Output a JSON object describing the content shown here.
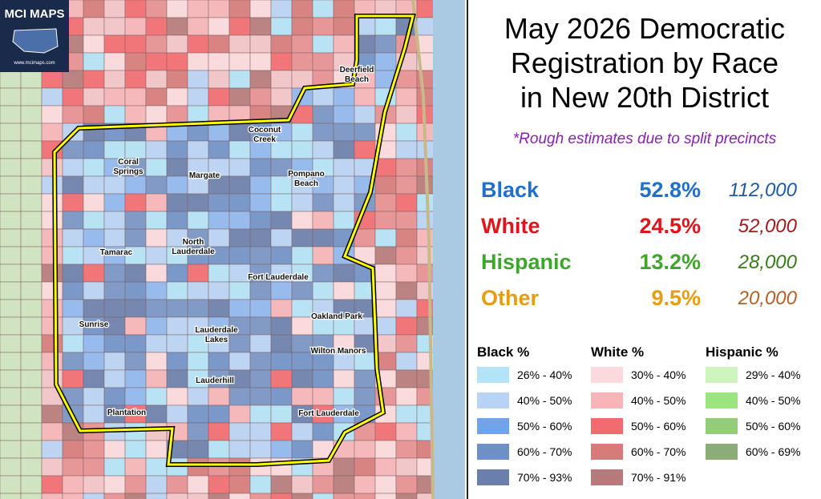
{
  "logo": {
    "title": "MCI MAPS",
    "url": "www.mcimaps.com"
  },
  "map": {
    "labels": [
      {
        "lines": [
          "Deerfield",
          "Beach"
        ]
      },
      {
        "lines": [
          "Coconut",
          "Creek"
        ]
      },
      {
        "lines": [
          "Coral",
          "Springs"
        ]
      },
      {
        "lines": [
          "Margate"
        ]
      },
      {
        "lines": [
          "Pompano",
          "Beach"
        ]
      },
      {
        "lines": [
          "North",
          "Lauderdale"
        ]
      },
      {
        "lines": [
          "Tamarac"
        ]
      },
      {
        "lines": [
          "Fort Lauderdale"
        ]
      },
      {
        "lines": [
          "Oakland Park"
        ]
      },
      {
        "lines": [
          "Sunrise"
        ]
      },
      {
        "lines": [
          "Lauderdale",
          "Lakes"
        ]
      },
      {
        "lines": [
          "Wilton Manors"
        ]
      },
      {
        "lines": [
          "Lauderhill"
        ]
      },
      {
        "lines": [
          "Plantation"
        ]
      },
      {
        "lines": [
          "Fort Lauderdale"
        ]
      }
    ]
  },
  "panel": {
    "title": [
      "May 2026 Democratic",
      "Registration by Race",
      "in New 20th District"
    ],
    "note": "*Rough estimates due to split precincts",
    "stats": [
      {
        "name": "Black",
        "percent": "52.8%",
        "count": "112,000",
        "color": "#1f6fd1",
        "count_color": "#1f5aa8"
      },
      {
        "name": "White",
        "percent": "24.5%",
        "count": "52,000",
        "color": "#e0151b",
        "count_color": "#a01c1c"
      },
      {
        "name": "Hispanic",
        "percent": "13.2%",
        "count": "28,000",
        "color": "#3ea72b",
        "count_color": "#3a7a1a"
      },
      {
        "name": "Other",
        "percent": "9.5%",
        "count": "20,000",
        "color": "#e69d12",
        "count_color": "#b5602a"
      }
    ],
    "legend": [
      {
        "header": "Black  %",
        "items": [
          {
            "label": "26% - 40%",
            "color": "#b3e3f7"
          },
          {
            "label": "40% - 50%",
            "color": "#b9d3f5"
          },
          {
            "label": "50% - 60%",
            "color": "#6fa4ea"
          },
          {
            "label": "60% - 70%",
            "color": "#6f90c6"
          },
          {
            "label": "70% - 93%",
            "color": "#6a7fab"
          }
        ]
      },
      {
        "header": "White %",
        "items": [
          {
            "label": "30% - 40%",
            "color": "#fbd9dd"
          },
          {
            "label": "40% - 50%",
            "color": "#f7b5b8"
          },
          {
            "label": "50% - 60%",
            "color": "#f26b6e"
          },
          {
            "label": "60% - 70%",
            "color": "#d77a7a"
          },
          {
            "label": "70% - 91%",
            "color": "#b77a7a"
          }
        ]
      },
      {
        "header": "Hispanic %",
        "items": [
          {
            "label": "29% - 40%",
            "color": "#cdf5bd"
          },
          {
            "label": "40% - 50%",
            "color": "#9ae57e"
          },
          {
            "label": "50% - 60%",
            "color": "#93cd78"
          },
          {
            "label": "60% - 69%",
            "color": "#8cad78"
          }
        ]
      }
    ]
  }
}
